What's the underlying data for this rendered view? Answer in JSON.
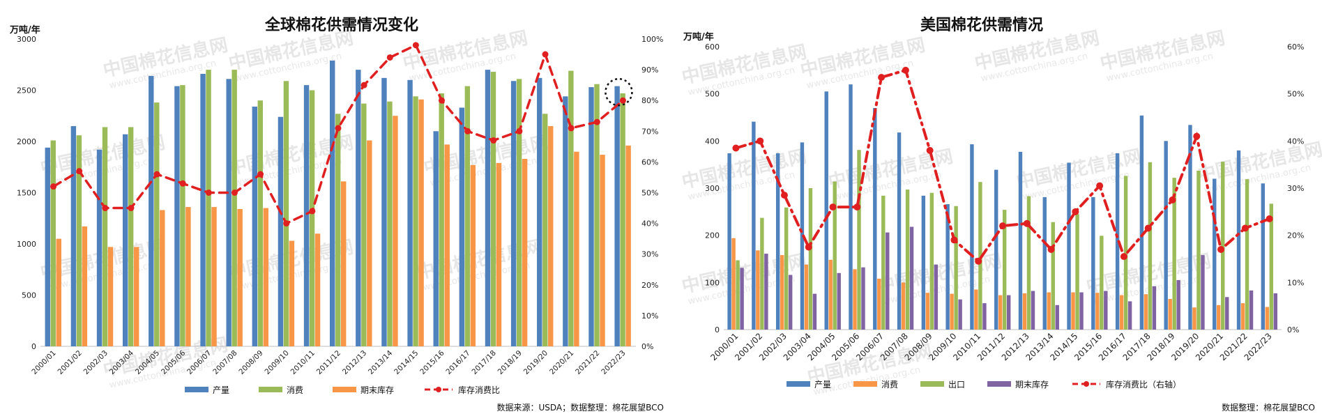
{
  "watermark": {
    "name": "中国棉花信息网",
    "url": "www.cottonchina.org.cn"
  },
  "colors": {
    "production": "#4f81bd",
    "consumption": "#9bbb59",
    "stock": "#f79646",
    "export": "#9bbb59",
    "ending_stock_us": "#8064a2",
    "us_consumption": "#f79646",
    "ratio": "#e02020"
  },
  "chart_data": [
    {
      "type": "bar",
      "title": "全球棉花供需情况变化",
      "ylabel": "万吨/年",
      "source": "数据来源：USDA；数据整理：棉花展望BCO",
      "ylim": [
        0,
        3000
      ],
      "y_ticks": [
        "0",
        "500",
        "1000",
        "1500",
        "2000",
        "2500",
        "3000"
      ],
      "y2lim": [
        0,
        100
      ],
      "y2_ticks": [
        "0%",
        "10%",
        "20%",
        "30%",
        "40%",
        "50%",
        "60%",
        "70%",
        "80%",
        "90%",
        "100%"
      ],
      "categories": [
        "2000/01",
        "2001/02",
        "2002/03",
        "2003/04",
        "2004/05",
        "2005/06",
        "2006/07",
        "2007/08",
        "2008/09",
        "2009/10",
        "2010/11",
        "2011/12",
        "2012/13",
        "2013/14",
        "2014/15",
        "2015/16",
        "2016/17",
        "2017/18",
        "2018/19",
        "2019/20",
        "2020/21",
        "2021/22",
        "2022/23"
      ],
      "series": [
        {
          "name": "产量",
          "values": [
            1940,
            2150,
            1920,
            2070,
            2640,
            2540,
            2660,
            2610,
            2340,
            2240,
            2550,
            2790,
            2700,
            2620,
            2600,
            2100,
            2330,
            2700,
            2590,
            2620,
            2440,
            2530,
            2540
          ]
        },
        {
          "name": "消费",
          "values": [
            2010,
            2060,
            2140,
            2140,
            2380,
            2550,
            2700,
            2700,
            2400,
            2590,
            2500,
            2270,
            2370,
            2390,
            2440,
            2470,
            2540,
            2680,
            2610,
            2270,
            2690,
            2560,
            2470
          ]
        },
        {
          "name": "期末库存",
          "values": [
            1050,
            1170,
            970,
            970,
            1330,
            1360,
            1360,
            1340,
            1350,
            1030,
            1100,
            1610,
            2010,
            2250,
            2410,
            1970,
            1770,
            1790,
            1830,
            2150,
            1900,
            1870,
            1960
          ]
        },
        {
          "name": "库存消费比",
          "axis": "right",
          "values": [
            52,
            57,
            45,
            45,
            56,
            53,
            50,
            50,
            56,
            40,
            44,
            71,
            85,
            94,
            98,
            80,
            70,
            67,
            70,
            95,
            71,
            73,
            80
          ]
        }
      ]
    },
    {
      "type": "bar",
      "title": "美国棉花供需情况",
      "ylabel": "万吨/年",
      "source": "数据整理：棉花展望BCO",
      "ylim": [
        0,
        600
      ],
      "y_ticks": [
        "0",
        "100",
        "200",
        "300",
        "400",
        "500",
        "600"
      ],
      "y2lim": [
        0,
        60
      ],
      "y2_ticks": [
        "0%",
        "10%",
        "20%",
        "30%",
        "40%",
        "50%",
        "60%"
      ],
      "categories": [
        "2000/01",
        "2001/02",
        "2002/03",
        "2003/04",
        "2004/05",
        "2005/06",
        "2006/07",
        "2007/08",
        "2008/09",
        "2009/10",
        "2010/11",
        "2011/12",
        "2012/13",
        "2013/14",
        "2014/15",
        "2015/16",
        "2016/17",
        "2017/18",
        "2018/19",
        "2019/20",
        "2020/21",
        "2021/22",
        "2022/23"
      ],
      "series": [
        {
          "name": "产量",
          "values": [
            374,
            441,
            374,
            397,
            505,
            520,
            470,
            418,
            284,
            266,
            393,
            339,
            377,
            281,
            354,
            281,
            374,
            454,
            400,
            434,
            320,
            380,
            310
          ]
        },
        {
          "name": "消费",
          "values": [
            194,
            168,
            158,
            138,
            148,
            128,
            108,
            100,
            78,
            76,
            85,
            73,
            77,
            79,
            79,
            78,
            73,
            75,
            65,
            47,
            52,
            56,
            48
          ]
        },
        {
          "name": "出口",
          "values": [
            147,
            237,
            259,
            300,
            314,
            381,
            284,
            297,
            290,
            262,
            313,
            254,
            283,
            228,
            245,
            199,
            326,
            355,
            322,
            337,
            356,
            319,
            267
          ]
        },
        {
          "name": "期末库存",
          "values": [
            131,
            161,
            116,
            76,
            120,
            132,
            206,
            218,
            138,
            64,
            56,
            73,
            82,
            52,
            79,
            82,
            60,
            92,
            105,
            158,
            69,
            83,
            77
          ]
        },
        {
          "name": "库存消费比（右轴）",
          "axis": "right",
          "values": [
            38.5,
            40,
            28.5,
            17.5,
            26,
            26,
            53.5,
            55,
            38,
            19,
            14.5,
            22,
            22.5,
            17,
            25,
            30.5,
            15.5,
            21.5,
            27.5,
            41,
            17,
            21.5,
            23.5
          ]
        }
      ]
    }
  ]
}
